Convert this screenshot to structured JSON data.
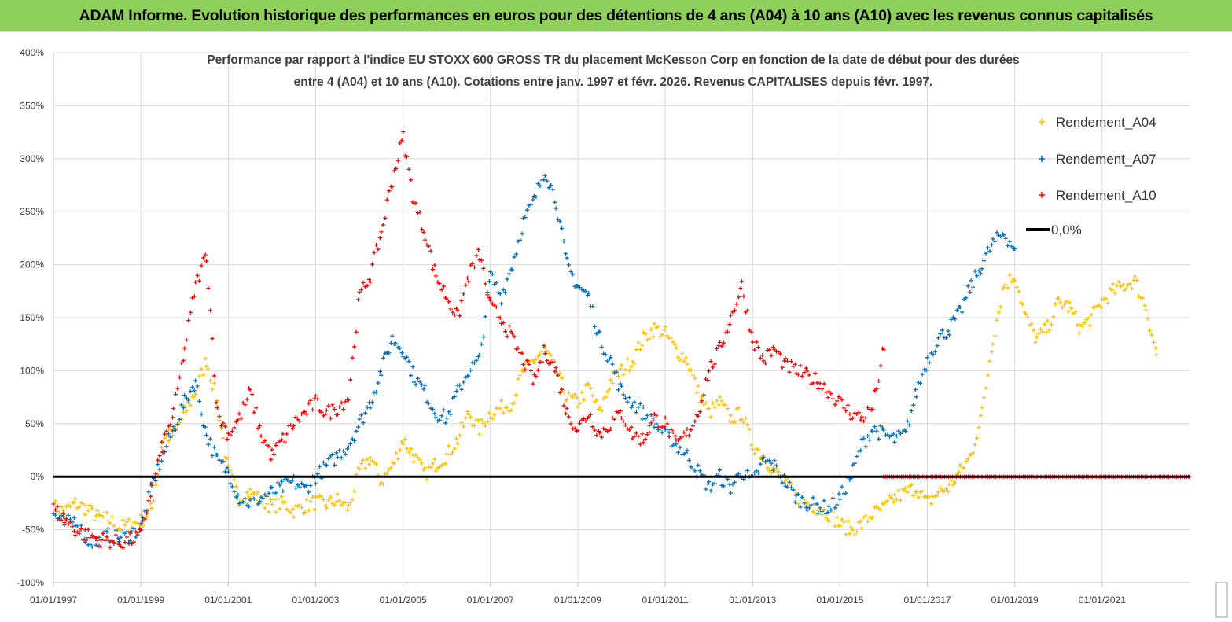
{
  "banner": {
    "title": "ADAM Informe. Evolution historique des performances en euros pour des détentions de 4 ans (A04) à 10 ans (A10) avec les revenus connus capitalisés"
  },
  "colors": {
    "banner_bg": "#8fcf5c",
    "A04": "#ffc000",
    "A07": "#0070c0",
    "A10": "#ff0000",
    "zero": "#000000",
    "grid": "#d9d9d9"
  },
  "chart_data": {
    "type": "scatter",
    "title_line1": "Performance par rapport à l'indice EU STOXX 600 GROSS TR  du placement McKesson Corp en fonction de la date de début pour des durées",
    "title_line2": "entre 4 (A04) et 10 ans (A10). Cotations entre janv. 1997 et févr. 2026. Revenus CAPITALISES depuis févr. 1997.",
    "x_range": [
      "1997-01-01",
      "2023-01-01"
    ],
    "x_tick_labels": [
      "01/01/1997",
      "01/01/1999",
      "01/01/2001",
      "01/01/2003",
      "01/01/2005",
      "01/01/2007",
      "01/01/2009",
      "01/01/2011",
      "01/01/2013",
      "01/01/2015",
      "01/01/2017",
      "01/01/2019",
      "01/01/2021"
    ],
    "x_tick_years": [
      1997,
      1999,
      2001,
      2003,
      2005,
      2007,
      2009,
      2011,
      2013,
      2015,
      2017,
      2019,
      2021
    ],
    "y_range": [
      -100,
      400
    ],
    "y_ticks": [
      -100,
      -50,
      0,
      50,
      100,
      150,
      200,
      250,
      300,
      350,
      400
    ],
    "y_tick_labels": [
      "-100%",
      "-50%",
      "0%",
      "50%",
      "100%",
      "150%",
      "200%",
      "250%",
      "300%",
      "350%",
      "400%"
    ],
    "legend": [
      {
        "key": "A04",
        "label": "Rendement_A04",
        "marker": "+"
      },
      {
        "key": "A07",
        "label": "Rendement_A07",
        "marker": "+"
      },
      {
        "key": "A10",
        "label": "Rendement_A10",
        "marker": "+"
      },
      {
        "key": "zero",
        "label": "0,0%",
        "marker": "line"
      }
    ],
    "series": [
      {
        "name": "Rendement_A04",
        "key": "A04",
        "x": [
          1997.0,
          1997.25,
          1997.5,
          1997.75,
          1998.0,
          1998.25,
          1998.5,
          1998.75,
          1999.0,
          1999.25,
          1999.5,
          1999.75,
          2000.0,
          2000.25,
          2000.5,
          2000.75,
          2001.0,
          2001.25,
          2001.5,
          2001.75,
          2002.0,
          2002.25,
          2002.5,
          2002.75,
          2003.0,
          2003.25,
          2003.5,
          2003.75,
          2004.0,
          2004.25,
          2004.5,
          2004.75,
          2005.0,
          2005.25,
          2005.5,
          2005.75,
          2006.0,
          2006.25,
          2006.5,
          2006.75,
          2007.0,
          2007.25,
          2007.5,
          2007.75,
          2008.0,
          2008.25,
          2008.5,
          2008.75,
          2009.0,
          2009.25,
          2009.5,
          2009.75,
          2010.0,
          2010.25,
          2010.5,
          2010.75,
          2011.0,
          2011.25,
          2011.5,
          2011.75,
          2012.0,
          2012.25,
          2012.5,
          2012.75,
          2013.0,
          2013.25,
          2013.5,
          2013.75,
          2014.0,
          2014.25,
          2014.5,
          2014.75,
          2015.0,
          2015.25,
          2015.5,
          2015.75,
          2016.0,
          2016.25,
          2016.5,
          2016.75,
          2017.0,
          2017.25,
          2017.5,
          2017.75,
          2018.0,
          2018.25,
          2018.5,
          2018.75,
          2019.0,
          2019.25,
          2019.5,
          2019.75,
          2020.0,
          2020.25,
          2020.5,
          2020.75,
          2021.0,
          2021.25,
          2021.5,
          2021.75,
          2022.0,
          2022.25
        ],
        "y": [
          -28,
          -33,
          -25,
          -30,
          -38,
          -40,
          -48,
          -45,
          -42,
          -30,
          35,
          40,
          60,
          80,
          110,
          70,
          5,
          -20,
          -15,
          -22,
          -28,
          -25,
          -32,
          -28,
          -24,
          -26,
          -22,
          -30,
          5,
          18,
          -5,
          10,
          35,
          20,
          2,
          12,
          20,
          35,
          60,
          45,
          60,
          65,
          70,
          100,
          110,
          120,
          100,
          75,
          70,
          85,
          60,
          90,
          100,
          110,
          130,
          140,
          135,
          120,
          110,
          80,
          60,
          70,
          55,
          60,
          30,
          20,
          5,
          -5,
          -20,
          -25,
          -30,
          -35,
          -45,
          -50,
          -45,
          -35,
          -30,
          -20,
          -15,
          -10,
          -25,
          -15,
          -10,
          5,
          20,
          60,
          130,
          180,
          190,
          150,
          130,
          140,
          165,
          160,
          140,
          150,
          165,
          175,
          180,
          185,
          160,
          115
        ]
      },
      {
        "name": "Rendement_A07",
        "key": "A07",
        "x": [
          1997.0,
          1997.25,
          1997.5,
          1997.75,
          1998.0,
          1998.25,
          1998.5,
          1998.75,
          1999.0,
          1999.25,
          1999.5,
          1999.75,
          2000.0,
          2000.25,
          2000.5,
          2000.75,
          2001.0,
          2001.25,
          2001.5,
          2001.75,
          2002.0,
          2002.25,
          2002.5,
          2002.75,
          2003.0,
          2003.25,
          2003.5,
          2003.75,
          2004.0,
          2004.25,
          2004.5,
          2004.75,
          2005.0,
          2005.25,
          2005.5,
          2005.75,
          2006.0,
          2006.25,
          2006.5,
          2006.75,
          2007.0,
          2007.25,
          2007.5,
          2007.75,
          2008.0,
          2008.25,
          2008.5,
          2008.75,
          2009.0,
          2009.25,
          2009.5,
          2009.75,
          2010.0,
          2010.25,
          2010.5,
          2010.75,
          2011.0,
          2011.25,
          2011.5,
          2011.75,
          2012.0,
          2012.25,
          2012.5,
          2012.75,
          2013.0,
          2013.25,
          2013.5,
          2013.75,
          2014.0,
          2014.25,
          2014.5,
          2014.75,
          2015.0,
          2015.25,
          2015.5,
          2015.75,
          2016.0,
          2016.25,
          2016.5,
          2016.75,
          2017.0,
          2017.25,
          2017.5,
          2017.75,
          2018.0,
          2018.25,
          2018.5,
          2018.75,
          2019.0
        ],
        "y": [
          -35,
          -45,
          -40,
          -60,
          -62,
          -55,
          -58,
          -55,
          -48,
          -10,
          20,
          45,
          70,
          90,
          40,
          15,
          5,
          -20,
          -25,
          -20,
          -15,
          -10,
          -5,
          -12,
          0,
          10,
          20,
          30,
          50,
          70,
          100,
          130,
          120,
          95,
          80,
          60,
          55,
          80,
          100,
          110,
          190,
          170,
          200,
          240,
          260,
          290,
          260,
          200,
          180,
          170,
          130,
          110,
          80,
          70,
          60,
          50,
          40,
          30,
          20,
          5,
          -10,
          0,
          -10,
          5,
          -5,
          15,
          10,
          -5,
          -20,
          -25,
          -28,
          -30,
          -20,
          0,
          30,
          45,
          40,
          35,
          40,
          80,
          110,
          130,
          140,
          155,
          180,
          200,
          220,
          230,
          215
        ]
      },
      {
        "name": "Rendement_A10",
        "key": "A10",
        "x": [
          1997.0,
          1997.25,
          1997.5,
          1997.75,
          1998.0,
          1998.25,
          1998.5,
          1998.75,
          1999.0,
          1999.25,
          1999.5,
          1999.75,
          2000.0,
          2000.25,
          2000.5,
          2000.75,
          2001.0,
          2001.25,
          2001.5,
          2001.75,
          2002.0,
          2002.25,
          2002.5,
          2002.75,
          2003.0,
          2003.25,
          2003.5,
          2003.75,
          2004.0,
          2004.25,
          2004.5,
          2004.75,
          2005.0,
          2005.25,
          2005.5,
          2005.75,
          2006.0,
          2006.25,
          2006.5,
          2006.75,
          2007.0,
          2007.25,
          2007.5,
          2007.75,
          2008.0,
          2008.25,
          2008.5,
          2008.75,
          2009.0,
          2009.25,
          2009.5,
          2009.75,
          2010.0,
          2010.25,
          2010.5,
          2010.75,
          2011.0,
          2011.25,
          2011.5,
          2011.75,
          2012.0,
          2012.25,
          2012.5,
          2012.75,
          2013.0,
          2013.25,
          2013.5,
          2013.75,
          2014.0,
          2014.25,
          2014.5,
          2014.75,
          2015.0,
          2015.25,
          2015.5,
          2015.75,
          2016.0
        ],
        "y": [
          -30,
          -40,
          -50,
          -55,
          -58,
          -60,
          -62,
          -60,
          -55,
          -10,
          30,
          60,
          120,
          180,
          210,
          60,
          40,
          55,
          80,
          40,
          20,
          35,
          50,
          60,
          70,
          60,
          65,
          75,
          170,
          190,
          230,
          280,
          320,
          260,
          230,
          190,
          170,
          150,
          190,
          210,
          160,
          150,
          130,
          110,
          90,
          120,
          100,
          60,
          45,
          60,
          40,
          50,
          60,
          40,
          35,
          55,
          50,
          30,
          40,
          60,
          100,
          120,
          150,
          180,
          130,
          110,
          120,
          105,
          100,
          95,
          90,
          80,
          70,
          60,
          55,
          65,
          120
        ]
      },
      {
        "name": "Rendement_A10 (recent)",
        "key": "A10",
        "x": [
          2016.0,
          2023.0
        ],
        "y": [
          0,
          0
        ]
      }
    ]
  }
}
